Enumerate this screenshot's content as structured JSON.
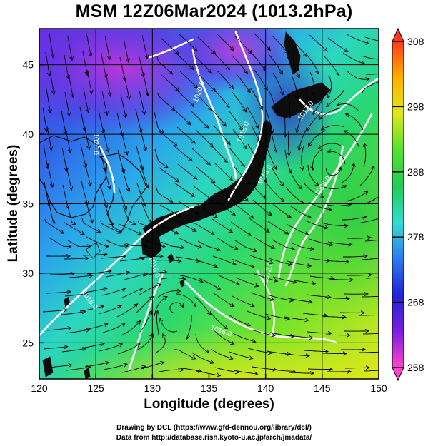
{
  "title": "MSM 12Z06Mar2024 (1013.2hPa)",
  "x_axis": {
    "label": "Longitude (degrees)",
    "range": [
      120,
      150
    ],
    "ticks": [
      "120",
      "125",
      "130",
      "135",
      "140",
      "145",
      "150"
    ]
  },
  "y_axis": {
    "label": "Latitude  (degrees)",
    "range": [
      22.4,
      47.6
    ],
    "ticks": [
      "25",
      "30",
      "35",
      "40",
      "45"
    ]
  },
  "colorbar": {
    "range": [
      258,
      308
    ],
    "ticks": [
      "258",
      "268",
      "278",
      "288",
      "298",
      "308"
    ],
    "colors": [
      "#ff44cc",
      "#7a1fe0",
      "#2222d8",
      "#2d7bf0",
      "#33ddd0",
      "#22cc55",
      "#55e030",
      "#dde81a",
      "#ffb000",
      "#ff3b1a"
    ]
  },
  "map_field": {
    "variable": "temperature",
    "land_color": "#0d0d0d",
    "isobar_color": "#ffffff",
    "streamline_color": "#000000"
  },
  "isobar_labels": [
    {
      "text": "1020.0",
      "lon": 124.8,
      "lat": 39.3,
      "angle": 90
    },
    {
      "text": "1020.0",
      "lon": 134.3,
      "lat": 43.0,
      "angle": -70
    },
    {
      "text": "1016.0",
      "lon": 138.2,
      "lat": 40.1,
      "angle": -70
    },
    {
      "text": "1012.0",
      "lon": 143.7,
      "lat": 41.6,
      "angle": -55
    },
    {
      "text": "1008.0",
      "lon": 145.2,
      "lat": 36.2,
      "angle": -55
    },
    {
      "text": "1016.0",
      "lon": 140.1,
      "lat": 37.0,
      "angle": -60
    },
    {
      "text": "1016.0",
      "lon": 124.3,
      "lat": 28.0,
      "angle": 55
    },
    {
      "text": "1016.0",
      "lon": 130.0,
      "lat": 30.4,
      "angle": 70
    },
    {
      "text": "1016.0",
      "lon": 136.0,
      "lat": 25.7,
      "angle": 20
    },
    {
      "text": "1012.0",
      "lon": 140.4,
      "lat": 30.0,
      "angle": -75
    }
  ],
  "credits": {
    "line1": "Drawing by DCL (https://www.gfd-dennou.org/library/dcl/)",
    "line2": "Data from http://database.rish.kyoto-u.ac.jp/arch/jmadata/"
  }
}
